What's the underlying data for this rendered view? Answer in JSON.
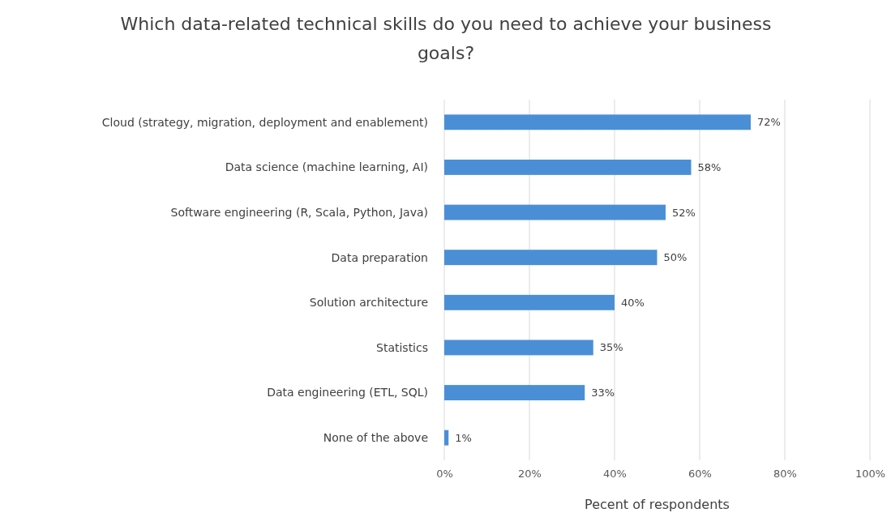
{
  "chart_data": {
    "type": "bar",
    "orientation": "horizontal",
    "title": "Which data-related technical skills do you need to achieve your business goals?",
    "xlabel": "Pecent of respondents",
    "categories": [
      "Cloud (strategy, migration, deployment and enablement)",
      "Data science (machine learning, AI)",
      "Software engineering (R, Scala, Python, Java)",
      "Data preparation",
      "Solution architecture",
      "Statistics",
      "Data engineering (ETL, SQL)",
      "None of the above"
    ],
    "values": [
      72,
      58,
      52,
      50,
      40,
      35,
      33,
      1
    ],
    "value_labels": [
      "72%",
      "58%",
      "52%",
      "50%",
      "40%",
      "35%",
      "33%",
      "1%"
    ],
    "color": "#4a8fd6",
    "xlim": [
      0,
      100
    ],
    "xticks": [
      {
        "value": 0,
        "label": "0%"
      },
      {
        "value": 20,
        "label": "20%"
      },
      {
        "value": 40,
        "label": "40%"
      },
      {
        "value": 60,
        "label": "60%"
      },
      {
        "value": 80,
        "label": "80%"
      },
      {
        "value": 100,
        "label": "100%"
      }
    ],
    "grid": "x"
  }
}
